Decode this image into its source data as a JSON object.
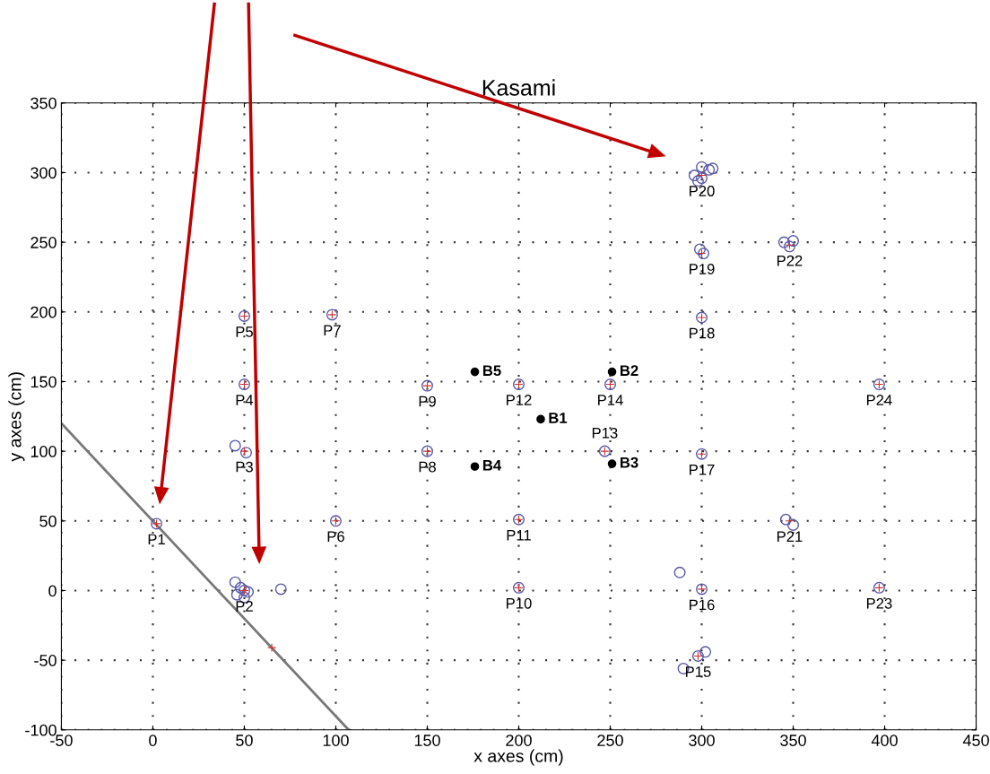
{
  "chart_data": {
    "type": "scatter",
    "title": "Kasami",
    "xlabel": "x axes (cm)",
    "ylabel": "y axes (cm)",
    "xlim": [
      -50,
      450
    ],
    "xticks": [
      -50,
      0,
      50,
      100,
      150,
      200,
      250,
      300,
      350,
      400,
      450
    ],
    "ylim": [
      -100,
      350
    ],
    "yticks": [
      -100,
      -50,
      0,
      50,
      100,
      150,
      200,
      250,
      300,
      350
    ],
    "grid": true,
    "legend": false,
    "series": [
      {
        "type": "line",
        "color": "#777777",
        "marker": "none",
        "line_style": "solid",
        "x": [
          -50,
          107
        ],
        "values": [
          120,
          -100
        ]
      },
      {
        "color": "#5a5aa8",
        "marker": "circle",
        "x": [
          2,
          45,
          48,
          52,
          50,
          46,
          70,
          50,
          45,
          51,
          50,
          50,
          100,
          98,
          150,
          150,
          200,
          200,
          200,
          247,
          250,
          290,
          298,
          302,
          288,
          300,
          300,
          300,
          299,
          301,
          296,
          300,
          304,
          300,
          306,
          298,
          346,
          350,
          345,
          350,
          348,
          397,
          397
        ],
        "values": [
          48,
          6,
          2,
          -1,
          -5,
          -3,
          1,
          0,
          104,
          99,
          148,
          197,
          50,
          198,
          100,
          147,
          2,
          51,
          148,
          100,
          148,
          -56,
          -47,
          -44,
          13,
          1,
          98,
          196,
          245,
          242,
          298,
          296,
          302,
          304,
          303,
          294,
          51,
          47,
          250,
          251,
          247,
          2,
          148
        ]
      },
      {
        "color": "#cc3333",
        "marker": "cross",
        "x": [
          2,
          50,
          50,
          50,
          50,
          100,
          98,
          150,
          150,
          200,
          200,
          200,
          247,
          250,
          298,
          300,
          300,
          300,
          300,
          300,
          348,
          348,
          397,
          397,
          65
        ],
        "values": [
          48,
          0,
          100,
          148,
          197,
          50,
          198,
          100,
          147,
          2,
          51,
          148,
          100,
          148,
          -47,
          1,
          98,
          196,
          242,
          298,
          50,
          248,
          2,
          148,
          -41
        ]
      },
      {
        "color": "#000000",
        "marker": "circle",
        "x": [
          176,
          251,
          212,
          176,
          251
        ],
        "values": [
          157,
          157,
          123,
          89,
          91
        ],
        "value_labels": [
          "B5",
          "B2",
          "B1",
          "B4",
          "B3"
        ]
      }
    ],
    "annotations": [
      {
        "text": "P1",
        "x": 2,
        "y": 48
      },
      {
        "text": "P2",
        "x": 50,
        "y": 0
      },
      {
        "text": "P3",
        "x": 50,
        "y": 100
      },
      {
        "text": "P4",
        "x": 50,
        "y": 148
      },
      {
        "text": "P5",
        "x": 50,
        "y": 197
      },
      {
        "text": "P6",
        "x": 100,
        "y": 50
      },
      {
        "text": "P7",
        "x": 98,
        "y": 198
      },
      {
        "text": "P8",
        "x": 150,
        "y": 100
      },
      {
        "text": "P9",
        "x": 150,
        "y": 147
      },
      {
        "text": "P10",
        "x": 200,
        "y": 2
      },
      {
        "text": "P11",
        "x": 200,
        "y": 51
      },
      {
        "text": "P12",
        "x": 200,
        "y": 148
      },
      {
        "text": "P13",
        "x": 247,
        "y": 100
      },
      {
        "text": "P14",
        "x": 250,
        "y": 148
      },
      {
        "text": "P15",
        "x": 298,
        "y": -47
      },
      {
        "text": "P16",
        "x": 300,
        "y": 1
      },
      {
        "text": "P17",
        "x": 300,
        "y": 98
      },
      {
        "text": "P18",
        "x": 300,
        "y": 196
      },
      {
        "text": "P19",
        "x": 300,
        "y": 242
      },
      {
        "text": "P20",
        "x": 300,
        "y": 298
      },
      {
        "text": "P21",
        "x": 348,
        "y": 50
      },
      {
        "text": "P22",
        "x": 348,
        "y": 248
      },
      {
        "text": "P23",
        "x": 397,
        "y": 2
      },
      {
        "text": "P24",
        "x": 397,
        "y": 148
      }
    ]
  }
}
